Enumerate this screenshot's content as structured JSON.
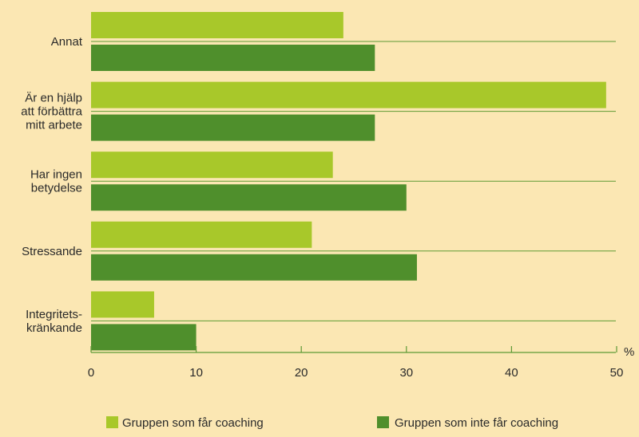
{
  "chart_data": {
    "type": "bar",
    "orientation": "horizontal",
    "categories": [
      [
        "Annat"
      ],
      [
        "Är en hjälp",
        "att förbättra",
        "mitt arbete"
      ],
      [
        "Har ingen",
        "betydelse"
      ],
      [
        "Stressande"
      ],
      [
        "Integritets-",
        "kränkande"
      ]
    ],
    "series": [
      {
        "name": "Gruppen som får coaching",
        "color": "#a8c82a",
        "values": [
          24,
          49,
          23,
          21,
          6
        ]
      },
      {
        "name": "Gruppen som inte får coaching",
        "color": "#4f8f2c",
        "values": [
          27,
          27,
          30,
          31,
          10
        ]
      }
    ],
    "xlim": [
      0,
      50
    ],
    "xticks": [
      0,
      10,
      20,
      30,
      40,
      50
    ],
    "xunit": "%",
    "grid": false,
    "legend_position": "bottom"
  }
}
